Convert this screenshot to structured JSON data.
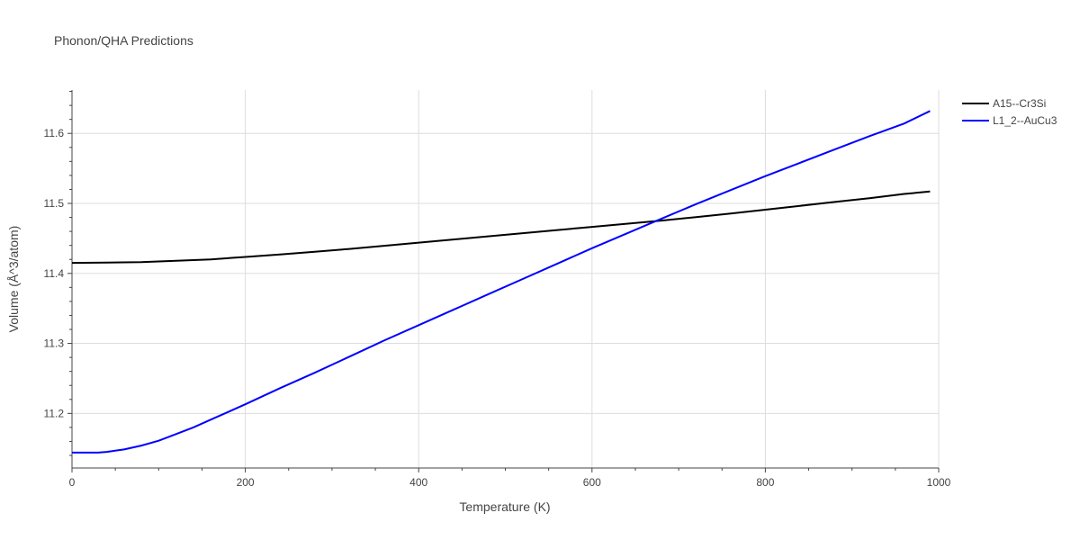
{
  "chart_data": {
    "type": "line",
    "title": "Phonon/QHA Predictions",
    "xlabel": "Temperature (K)",
    "ylabel": "Volume (Å^3/atom)",
    "xlim": [
      0,
      1000
    ],
    "ylim": [
      11.122,
      11.662
    ],
    "x_ticks": [
      0,
      200,
      400,
      600,
      800,
      1000
    ],
    "y_ticks": [
      11.2,
      11.3,
      11.4,
      11.5,
      11.6
    ],
    "x_tick_labels": [
      "0",
      "200",
      "400",
      "600",
      "800",
      "1000"
    ],
    "y_tick_labels": [
      "11.2",
      "11.3",
      "11.4",
      "11.5",
      "11.6"
    ],
    "grid": true,
    "legend_position": "top-right",
    "series": [
      {
        "name": "A15--Cr3Si",
        "color": "#000000",
        "x": [
          0,
          40,
          80,
          120,
          160,
          200,
          240,
          280,
          320,
          360,
          400,
          440,
          480,
          520,
          560,
          600,
          640,
          680,
          720,
          760,
          800,
          840,
          880,
          920,
          960,
          990
        ],
        "y": [
          11.415,
          11.4155,
          11.416,
          11.418,
          11.42,
          11.4235,
          11.427,
          11.431,
          11.435,
          11.4395,
          11.444,
          11.4485,
          11.453,
          11.4575,
          11.462,
          11.4665,
          11.471,
          11.4755,
          11.4805,
          11.4855,
          11.491,
          11.4965,
          11.502,
          11.5075,
          11.5135,
          11.517
        ]
      },
      {
        "name": "L1_2--AuCu3",
        "color": "#0000ff",
        "x": [
          0,
          30,
          40,
          60,
          80,
          100,
          120,
          140,
          160,
          180,
          200,
          240,
          280,
          320,
          360,
          400,
          440,
          480,
          520,
          560,
          600,
          640,
          680,
          720,
          760,
          800,
          840,
          880,
          920,
          960,
          990
        ],
        "y": [
          11.144,
          11.144,
          11.145,
          11.1485,
          11.154,
          11.161,
          11.1705,
          11.18,
          11.191,
          11.202,
          11.213,
          11.236,
          11.258,
          11.281,
          11.304,
          11.326,
          11.348,
          11.37,
          11.392,
          11.414,
          11.436,
          11.457,
          11.478,
          11.499,
          11.519,
          11.539,
          11.558,
          11.577,
          11.596,
          11.614,
          11.632
        ]
      }
    ]
  }
}
